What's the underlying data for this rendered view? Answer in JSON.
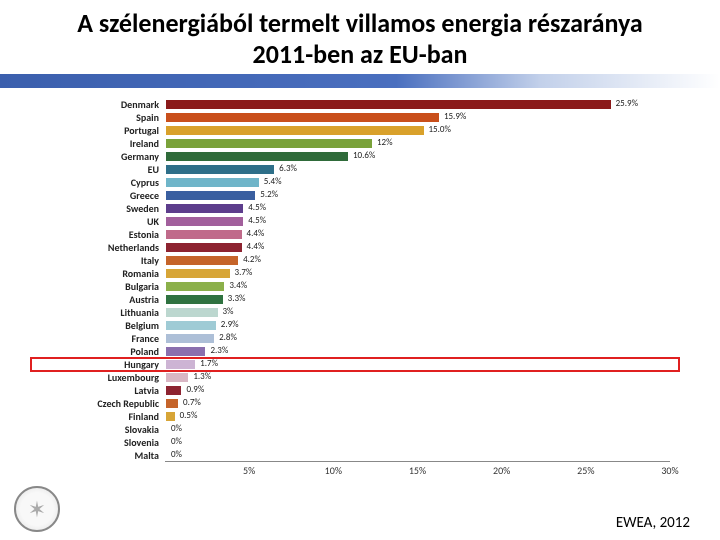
{
  "title_line1": "A szélenergiából termelt villamos energia részaránya",
  "title_line2": "2011-ben az EU-ban",
  "source": "EWEA, 2012",
  "chart": {
    "type": "bar",
    "x_max": 30,
    "x_ticks": [
      5,
      10,
      15,
      20,
      25,
      30
    ],
    "x_tick_suffix": "%",
    "label_fontsize": 10,
    "value_fontsize": 9,
    "highlight_country": "Hungary",
    "highlight_color": "#e02020",
    "rows": [
      {
        "label": "Denmark",
        "value": 25.9,
        "color": "#8b1a1a"
      },
      {
        "label": "Spain",
        "value": 15.9,
        "color": "#c94f1b"
      },
      {
        "label": "Portugal",
        "value": 15.0,
        "color": "#d9a12b"
      },
      {
        "label": "Ireland",
        "value": 12.0,
        "color": "#7aa23a"
      },
      {
        "label": "Germany",
        "value": 10.6,
        "color": "#2f6b3a"
      },
      {
        "label": "EU",
        "value": 6.3,
        "color": "#2e6f89"
      },
      {
        "label": "Cyprus",
        "value": 5.4,
        "color": "#6fb5c9"
      },
      {
        "label": "Greece",
        "value": 5.2,
        "color": "#3a5fa0"
      },
      {
        "label": "Sweden",
        "value": 4.5,
        "color": "#5d3d8c"
      },
      {
        "label": "UK",
        "value": 4.5,
        "color": "#a25f9c"
      },
      {
        "label": "Estonia",
        "value": 4.4,
        "color": "#c06a8a"
      },
      {
        "label": "Netherlands",
        "value": 4.4,
        "color": "#8d2330"
      },
      {
        "label": "Italy",
        "value": 4.2,
        "color": "#c5642a"
      },
      {
        "label": "Romania",
        "value": 3.7,
        "color": "#d7a537"
      },
      {
        "label": "Bulgaria",
        "value": 3.4,
        "color": "#8bb04a"
      },
      {
        "label": "Austria",
        "value": 3.3,
        "color": "#2f7240"
      },
      {
        "label": "Lithuania",
        "value": 3.0,
        "color": "#bcd7cf"
      },
      {
        "label": "Belgium",
        "value": 2.9,
        "color": "#9fcbd5"
      },
      {
        "label": "France",
        "value": 2.8,
        "color": "#adbfd7"
      },
      {
        "label": "Poland",
        "value": 2.3,
        "color": "#8a6fae"
      },
      {
        "label": "Hungary",
        "value": 1.7,
        "color": "#cdb4d4"
      },
      {
        "label": "Luxembourg",
        "value": 1.3,
        "color": "#d9b6c4"
      },
      {
        "label": "Latvia",
        "value": 0.9,
        "color": "#8d2330"
      },
      {
        "label": "Czech Republic",
        "value": 0.7,
        "color": "#c5642a"
      },
      {
        "label": "Finland",
        "value": 0.5,
        "color": "#d7a537"
      },
      {
        "label": "Slovakia",
        "value": 0.0,
        "color": "#8bb04a"
      },
      {
        "label": "Slovenia",
        "value": 0.0,
        "color": "#2f7240"
      },
      {
        "label": "Malta",
        "value": 0.0,
        "color": "#2e6f89"
      }
    ]
  }
}
